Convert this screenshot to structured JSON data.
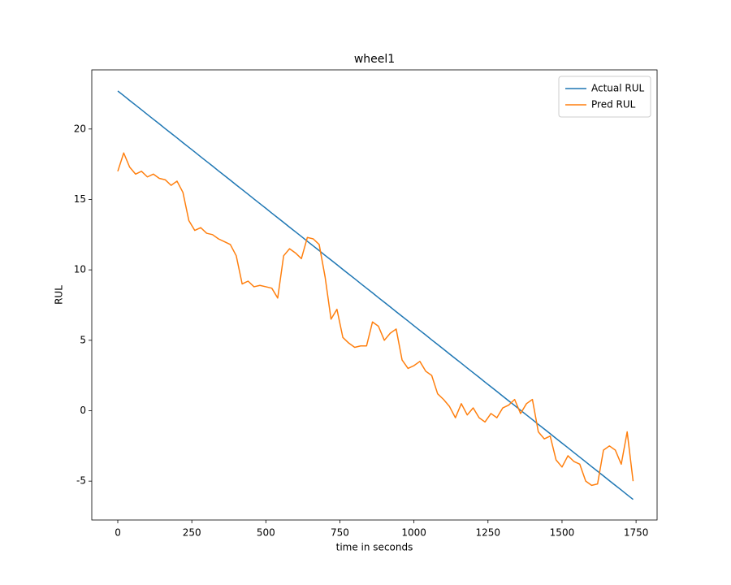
{
  "chart_data": {
    "type": "line",
    "title": "wheel1",
    "x_label": "time in seconds",
    "y_label": "RUL",
    "x": [
      0,
      20,
      40,
      60,
      80,
      100,
      120,
      140,
      160,
      180,
      200,
      220,
      240,
      260,
      280,
      300,
      320,
      340,
      360,
      380,
      400,
      420,
      440,
      460,
      480,
      500,
      520,
      540,
      560,
      580,
      600,
      620,
      640,
      660,
      680,
      700,
      720,
      740,
      760,
      780,
      800,
      820,
      840,
      860,
      880,
      900,
      920,
      940,
      960,
      980,
      1000,
      1020,
      1040,
      1060,
      1080,
      1100,
      1120,
      1140,
      1160,
      1180,
      1200,
      1220,
      1240,
      1260,
      1280,
      1300,
      1320,
      1340,
      1360,
      1380,
      1400,
      1420,
      1440,
      1460,
      1480,
      1500,
      1520,
      1540,
      1560,
      1580,
      1600,
      1620,
      1640,
      1660,
      1680,
      1700,
      1720,
      1740
    ],
    "series": [
      {
        "name": "Actual RUL",
        "color": "#1f77b4",
        "values": [
          22.7,
          22.37,
          22.03,
          21.7,
          21.37,
          21.03,
          20.7,
          20.37,
          20.03,
          19.7,
          19.37,
          19.03,
          18.7,
          18.37,
          18.03,
          17.7,
          17.37,
          17.03,
          16.7,
          16.37,
          16.03,
          15.7,
          15.37,
          15.03,
          14.7,
          14.37,
          14.03,
          13.7,
          13.37,
          13.03,
          12.7,
          12.37,
          12.03,
          11.7,
          11.37,
          11.03,
          10.7,
          10.37,
          10.03,
          9.7,
          9.37,
          9.03,
          8.7,
          8.37,
          8.03,
          7.7,
          7.37,
          7.03,
          6.7,
          6.37,
          6.03,
          5.7,
          5.37,
          5.03,
          4.7,
          4.37,
          4.03,
          3.7,
          3.37,
          3.03,
          2.7,
          2.37,
          2.03,
          1.7,
          1.37,
          1.03,
          0.7,
          0.37,
          0.03,
          -0.3,
          -0.63,
          -0.97,
          -1.3,
          -1.63,
          -1.97,
          -2.3,
          -2.63,
          -2.97,
          -3.3,
          -3.63,
          -3.97,
          -4.3,
          -4.63,
          -4.97,
          -5.3,
          -5.63,
          -5.97,
          -6.3
        ]
      },
      {
        "name": "Pred RUL",
        "color": "#ff7f0e",
        "values": [
          17.0,
          18.3,
          17.3,
          16.8,
          17.0,
          16.6,
          16.8,
          16.5,
          16.4,
          16.0,
          16.3,
          15.5,
          13.5,
          12.8,
          13.0,
          12.6,
          12.5,
          12.2,
          12.0,
          11.8,
          11.0,
          9.0,
          9.2,
          8.8,
          8.9,
          8.8,
          8.7,
          8.0,
          11.0,
          11.5,
          11.2,
          10.8,
          12.3,
          12.2,
          11.8,
          9.5,
          6.5,
          7.2,
          5.2,
          4.8,
          4.5,
          4.6,
          4.6,
          6.3,
          6.0,
          5.0,
          5.5,
          5.8,
          3.6,
          3.0,
          3.2,
          3.5,
          2.8,
          2.5,
          1.2,
          0.8,
          0.3,
          -0.5,
          0.5,
          -0.3,
          0.2,
          -0.5,
          -0.8,
          -0.2,
          -0.5,
          0.2,
          0.4,
          0.8,
          -0.2,
          0.5,
          0.8,
          -1.5,
          -2.0,
          -1.8,
          -3.5,
          -4.0,
          -3.2,
          -3.6,
          -3.8,
          -5.0,
          -5.3,
          -5.2,
          -2.8,
          -2.5,
          -2.8,
          -3.8,
          -1.5,
          -5.0
        ]
      }
    ],
    "xlim": [
      -87.8,
      1821
    ],
    "ylim": [
      -7.76,
      24.2
    ],
    "xticks": [
      0,
      250,
      500,
      750,
      1000,
      1250,
      1500,
      1750
    ],
    "yticks": [
      -5,
      0,
      5,
      10,
      15,
      20
    ],
    "grid": false,
    "legend": "upper right"
  }
}
